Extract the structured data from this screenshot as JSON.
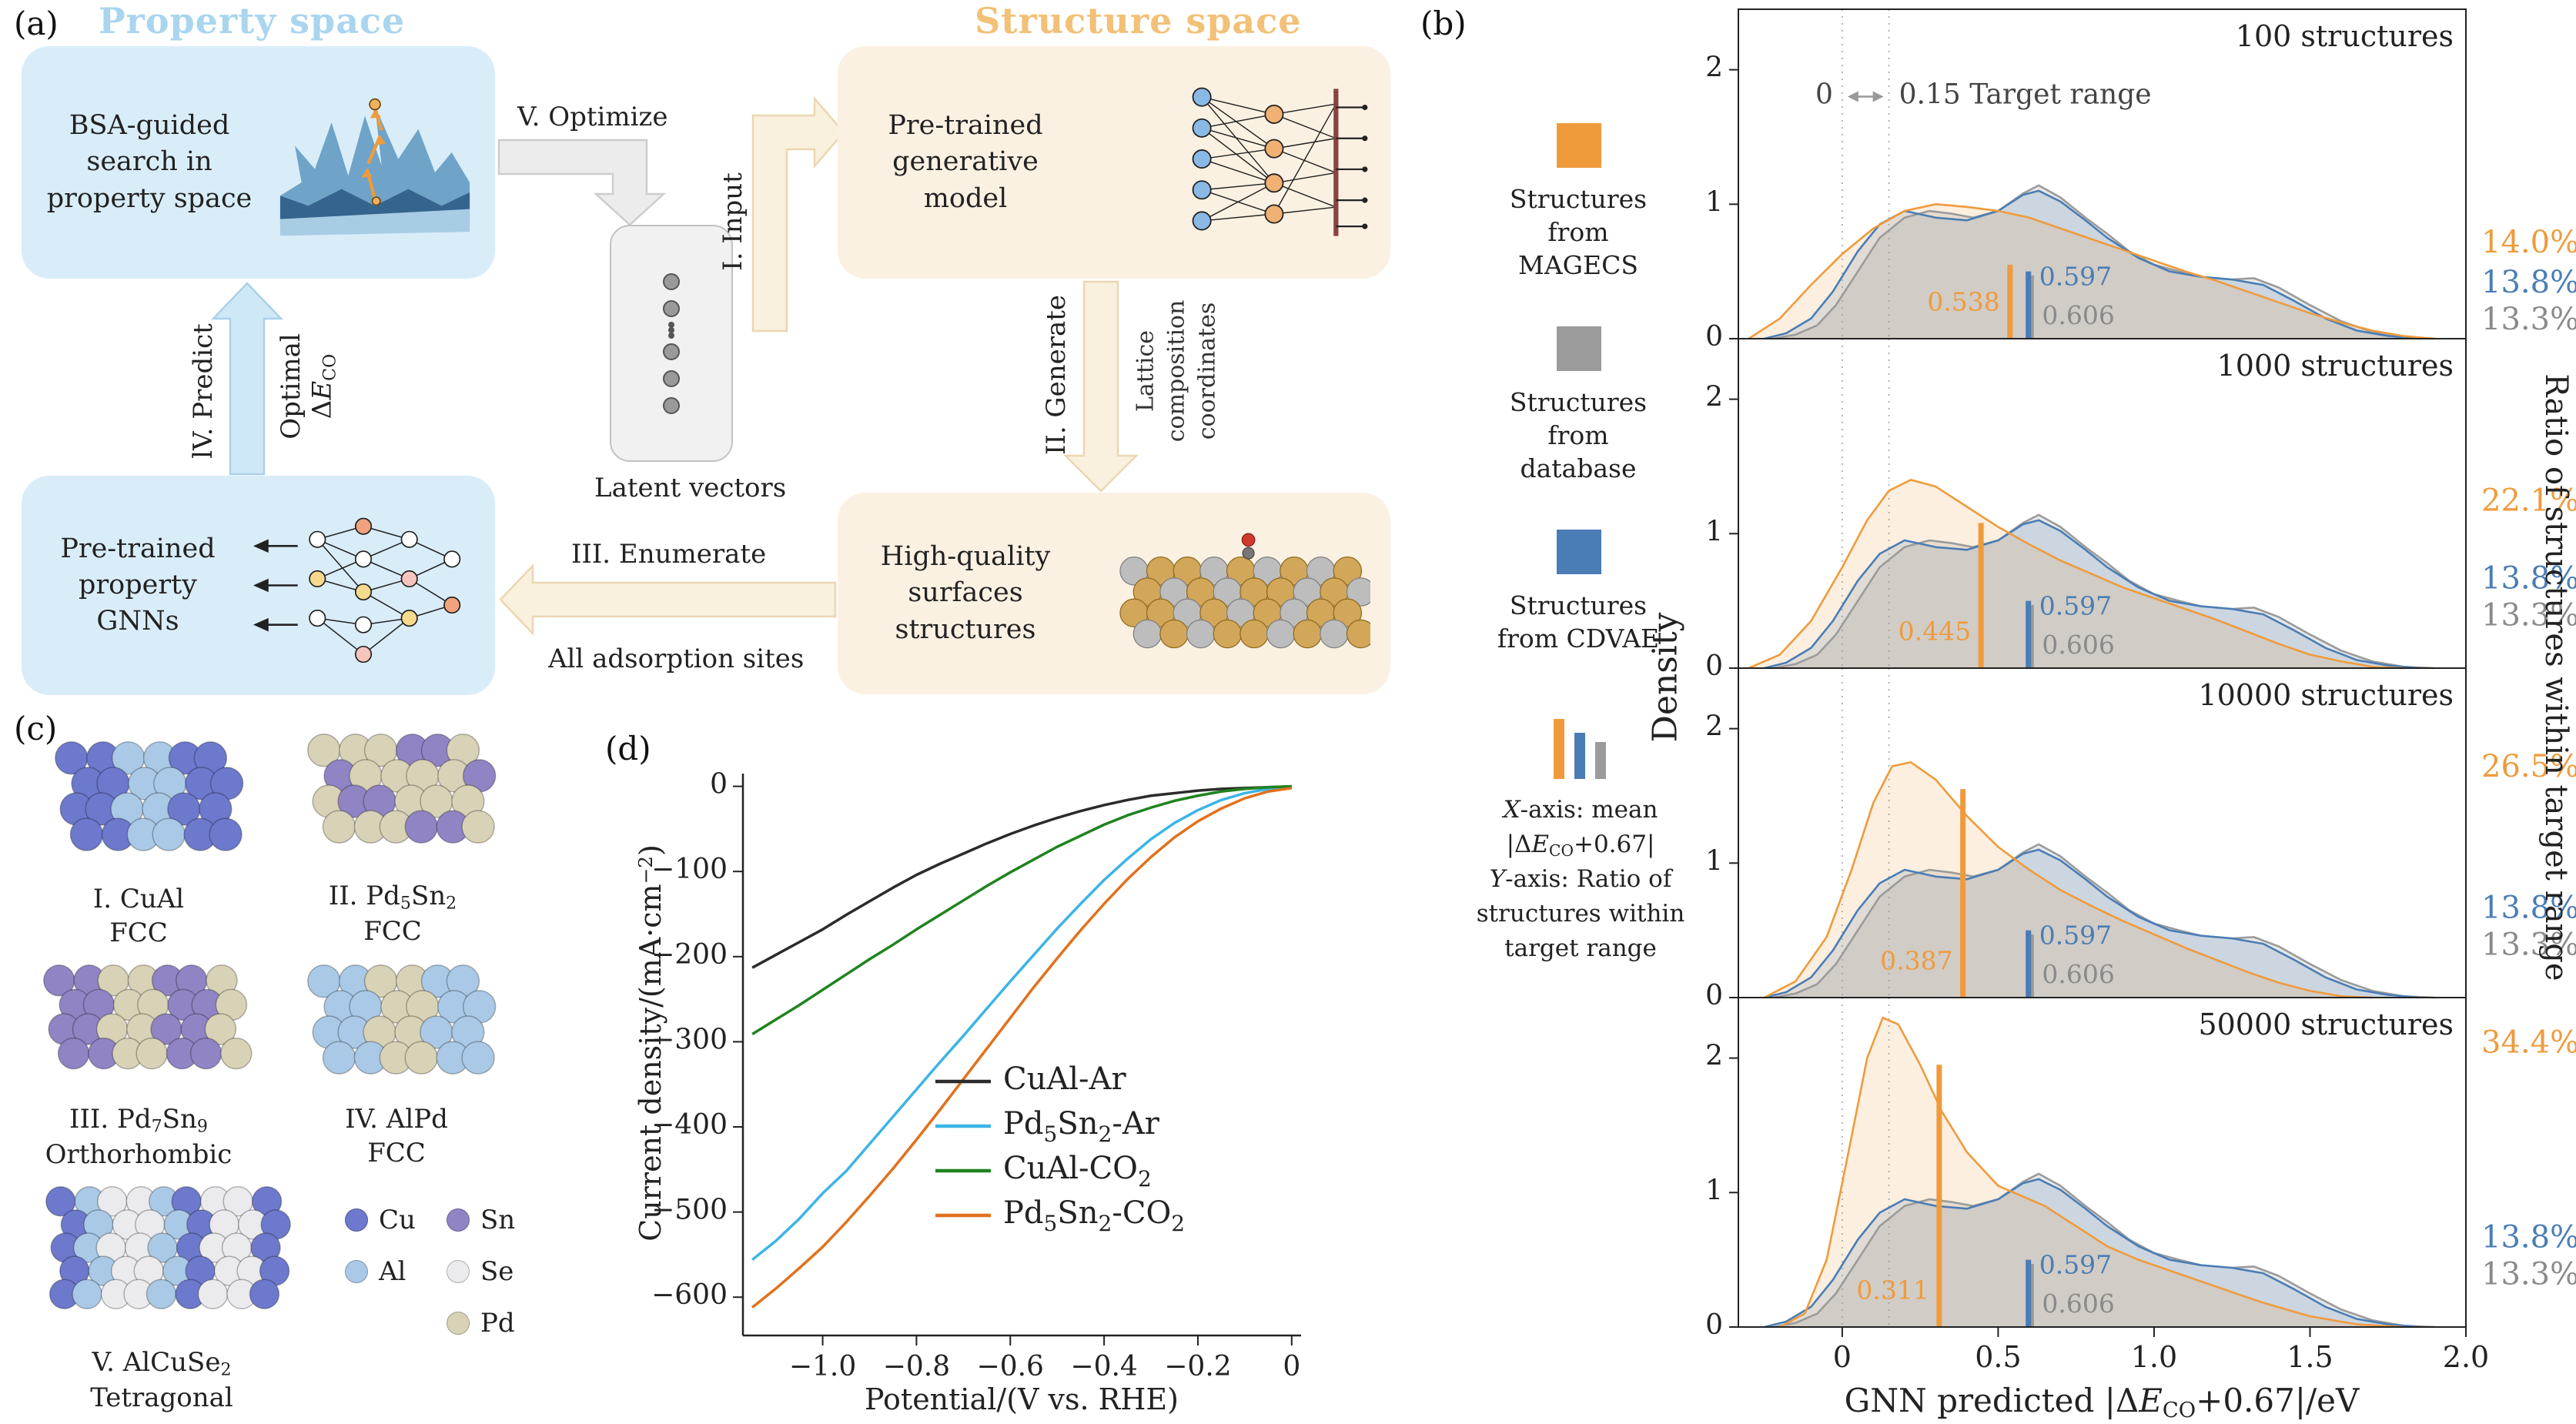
{
  "colors": {
    "magecs_orange": "#ef9b3c",
    "database_gray": "#9b9b9b",
    "cdvae_blue": "#4a7db5",
    "property_blue": "#a9d5ee",
    "property_box": "#d9edf9",
    "structure_orange": "#f2c076",
    "structure_box": "#fbf1e2",
    "arrow_gray": "#ececec",
    "arrow_blue": "#cfe8f7",
    "arrow_cream": "#faf0de"
  },
  "panel_a": {
    "label": "(a)",
    "property_space_title": "Property space",
    "structure_space_title": "Structure space",
    "bsa_box": "BSA-guided search in property space",
    "generative_box": "Pre-trained generative model",
    "latent_label": "Latent vectors",
    "gnn_box": "Pre-trained property GNNs",
    "surfaces_box": "High-quality surfaces structures",
    "arrow_optimize": "V. Optimize",
    "arrow_input": "I. Input",
    "arrow_generate": "II. Generate",
    "generate_side": [
      "Lattice",
      "composition",
      "coordinates"
    ],
    "arrow_predict": "lV. Predict",
    "predict_opt": "Optimal",
    "predict_val_parts": [
      {
        "t": "Δ"
      },
      {
        "t": "E",
        "i": 1
      },
      {
        "t": "CO",
        "s": 1
      }
    ],
    "arrow_enumerate": "III. Enumerate",
    "enumerate_sub": "All adsorption sites"
  },
  "panel_b": {
    "label": "(b)",
    "legend_magecs": "Structures from MAGECS",
    "legend_database": "Structures from database",
    "legend_cdvae": "Structures from CDVAE",
    "note_lines": [
      [
        {
          "t": "X",
          "i": 1
        },
        {
          "t": "-axis: mean"
        }
      ],
      [
        {
          "t": "|Δ"
        },
        {
          "t": "E",
          "i": 1
        },
        {
          "t": "CO",
          "s": 1
        },
        {
          "t": "+0.67|"
        }
      ],
      [
        {
          "t": "Y",
          "i": 1
        },
        {
          "t": "-axis: Ratio of"
        }
      ],
      [
        {
          "t": "structures within"
        }
      ],
      [
        {
          "t": "target range"
        }
      ]
    ]
  },
  "panel_c": {
    "label": "(c)",
    "structures": [
      {
        "name_parts": [
          {
            "t": "I. CuAl"
          }
        ],
        "lattice": "FCC",
        "colors": [
          "#6d79cc",
          "#a9c9e6"
        ]
      },
      {
        "name_parts": [
          {
            "t": "II. Pd"
          },
          {
            "t": "5",
            "s": 1
          },
          {
            "t": "Sn"
          },
          {
            "t": "2",
            "s": 1
          }
        ],
        "lattice": "FCC",
        "colors": [
          "#d8d2b6",
          "#9084c4",
          "#d8d2b6"
        ]
      },
      {
        "name_parts": [
          {
            "t": "III. Pd"
          },
          {
            "t": "7",
            "s": 1
          },
          {
            "t": "Sn"
          },
          {
            "t": "9",
            "s": 1
          }
        ],
        "lattice": "Orthorhombic",
        "colors": [
          "#9084c4",
          "#d8d2b6"
        ]
      },
      {
        "name_parts": [
          {
            "t": "IV. AlPd"
          }
        ],
        "lattice": "FCC",
        "colors": [
          "#a9c9e6",
          "#d8d2b6"
        ]
      },
      {
        "name_parts": [
          {
            "t": "V. AlCuSe"
          },
          {
            "t": "2",
            "s": 1
          }
        ],
        "lattice": "Tetragonal",
        "colors": [
          "#6d79cc",
          "#ebebee",
          "#a9c9e6",
          "#ebebee"
        ]
      }
    ],
    "legend": [
      {
        "label": "Cu",
        "color": "#6d79cc"
      },
      {
        "label": "Al",
        "color": "#a9c9e6"
      },
      {
        "label": "Sn",
        "color": "#9084c4"
      },
      {
        "label": "Se",
        "color": "#ebebee"
      },
      {
        "label": "Pd",
        "color": "#d8d2b6"
      }
    ]
  },
  "panel_d": {
    "label": "(d)"
  },
  "chart_data": [
    {
      "id": "gnn-predicted-density",
      "type": "area",
      "ylabel": "Density",
      "right_label": "Ratio of structures within target range",
      "xlabel_parts": [
        {
          "t": "GNN predicted |Δ"
        },
        {
          "t": "E",
          "i": 1
        },
        {
          "t": "CO",
          "s": 1
        },
        {
          "t": "+0.67|/eV"
        }
      ],
      "xlim": [
        -0.333,
        2.0
      ],
      "ylim": [
        0,
        2.45
      ],
      "xtick_vals": [
        0,
        0.5,
        1.0,
        1.5,
        2.0
      ],
      "xtick_labels": [
        "0",
        "0.5",
        "1.0",
        "1.5",
        "2.0"
      ],
      "yticks": [
        0,
        1,
        2
      ],
      "ytick_labels": [
        "0",
        "1",
        "2"
      ],
      "target_lines": [
        0,
        0.15
      ],
      "annotation": {
        "left": "0",
        "right": "0.15  Target range"
      },
      "legend_position": "left column outside",
      "grid": false,
      "fixed_curves": {
        "database": {
          "mean": 0.606,
          "mean_label": "0.606",
          "x": [
            -0.22,
            -0.15,
            -0.08,
            -0.02,
            0.05,
            0.12,
            0.2,
            0.28,
            0.35,
            0.42,
            0.5,
            0.58,
            0.63,
            0.7,
            0.78,
            0.85,
            0.92,
            1.0,
            1.08,
            1.15,
            1.25,
            1.32,
            1.4,
            1.5,
            1.6,
            1.7,
            1.8,
            1.9
          ],
          "y": [
            0,
            0.03,
            0.1,
            0.25,
            0.5,
            0.75,
            0.9,
            0.95,
            0.93,
            0.9,
            0.95,
            1.08,
            1.14,
            1.05,
            0.9,
            0.78,
            0.65,
            0.55,
            0.5,
            0.46,
            0.44,
            0.45,
            0.38,
            0.25,
            0.13,
            0.05,
            0.01,
            0
          ]
        },
        "cdvae": {
          "mean": 0.597,
          "mean_label": "0.597",
          "x": [
            -0.25,
            -0.18,
            -0.1,
            -0.03,
            0.05,
            0.12,
            0.2,
            0.3,
            0.4,
            0.5,
            0.58,
            0.63,
            0.7,
            0.78,
            0.85,
            0.95,
            1.05,
            1.15,
            1.25,
            1.35,
            1.45,
            1.55,
            1.65,
            1.75,
            1.85
          ],
          "y": [
            0,
            0.04,
            0.15,
            0.35,
            0.65,
            0.85,
            0.95,
            0.9,
            0.88,
            0.95,
            1.07,
            1.1,
            1.02,
            0.88,
            0.75,
            0.6,
            0.5,
            0.46,
            0.44,
            0.4,
            0.28,
            0.15,
            0.06,
            0.02,
            0
          ]
        }
      },
      "panels": [
        {
          "title": "100 structures",
          "magecs_mean": 0.538,
          "magecs_mean_label": "0.538",
          "magecs_bar_h": 0.55,
          "cdvae_bar_h": 0.5,
          "db_bar_h": 0.47,
          "pct": {
            "magecs": "14.0%",
            "cdvae": "13.8%",
            "database": "13.3%"
          },
          "magecs_x": [
            -0.3,
            -0.2,
            -0.1,
            0,
            0.1,
            0.2,
            0.3,
            0.4,
            0.5,
            0.6,
            0.7,
            0.8,
            0.9,
            1.0,
            1.1,
            1.2,
            1.3,
            1.4,
            1.5,
            1.6,
            1.7,
            1.8,
            1.9
          ],
          "magecs_y": [
            0,
            0.15,
            0.4,
            0.63,
            0.82,
            0.95,
            1.0,
            0.98,
            0.95,
            0.9,
            0.82,
            0.74,
            0.66,
            0.58,
            0.5,
            0.43,
            0.35,
            0.27,
            0.19,
            0.12,
            0.06,
            0.02,
            0
          ]
        },
        {
          "title": "1000 structures",
          "magecs_mean": 0.445,
          "magecs_mean_label": "0.445",
          "magecs_bar_h": 1.08,
          "cdvae_bar_h": 0.5,
          "db_bar_h": 0.47,
          "pct": {
            "magecs": "22.1%",
            "cdvae": "13.8%",
            "database": "13.3%"
          },
          "magecs_x": [
            -0.3,
            -0.2,
            -0.1,
            0,
            0.08,
            0.15,
            0.22,
            0.3,
            0.4,
            0.5,
            0.6,
            0.7,
            0.8,
            0.9,
            1.0,
            1.1,
            1.2,
            1.3,
            1.4,
            1.5,
            1.6,
            1.7,
            1.8
          ],
          "magecs_y": [
            0,
            0.1,
            0.35,
            0.75,
            1.1,
            1.32,
            1.4,
            1.35,
            1.2,
            1.05,
            0.92,
            0.8,
            0.7,
            0.6,
            0.52,
            0.44,
            0.36,
            0.27,
            0.18,
            0.1,
            0.05,
            0.01,
            0
          ]
        },
        {
          "title": "10000 structures",
          "magecs_mean": 0.387,
          "magecs_mean_label": "0.387",
          "magecs_bar_h": 1.55,
          "cdvae_bar_h": 0.5,
          "db_bar_h": 0.47,
          "pct": {
            "magecs": "26.5%",
            "cdvae": "13.8%",
            "database": "13.3%"
          },
          "magecs_x": [
            -0.25,
            -0.15,
            -0.05,
            0.03,
            0.1,
            0.16,
            0.22,
            0.3,
            0.4,
            0.5,
            0.6,
            0.7,
            0.8,
            0.9,
            1.0,
            1.1,
            1.2,
            1.3,
            1.4,
            1.5,
            1.6,
            1.7
          ],
          "magecs_y": [
            0,
            0.12,
            0.45,
            0.95,
            1.45,
            1.72,
            1.75,
            1.62,
            1.35,
            1.12,
            0.95,
            0.8,
            0.68,
            0.57,
            0.47,
            0.37,
            0.28,
            0.19,
            0.11,
            0.05,
            0.01,
            0
          ]
        },
        {
          "title": "50000 structures",
          "magecs_mean": 0.311,
          "magecs_mean_label": "0.311",
          "magecs_bar_h": 1.95,
          "cdvae_bar_h": 0.5,
          "db_bar_h": 0.47,
          "pct": {
            "magecs": "34.4%",
            "cdvae": "13.8%",
            "database": "13.3%"
          },
          "magecs_x": [
            -0.2,
            -0.12,
            -0.05,
            0.02,
            0.08,
            0.13,
            0.18,
            0.25,
            0.32,
            0.4,
            0.5,
            0.6,
            0.65,
            0.75,
            0.85,
            0.95,
            1.05,
            1.2,
            1.35,
            1.5,
            1.65,
            1.8
          ],
          "magecs_y": [
            0,
            0.1,
            0.5,
            1.3,
            2.0,
            2.3,
            2.25,
            1.95,
            1.6,
            1.3,
            1.05,
            0.95,
            0.9,
            0.75,
            0.6,
            0.5,
            0.42,
            0.3,
            0.18,
            0.08,
            0.02,
            0
          ]
        }
      ]
    },
    {
      "id": "lsv-curves",
      "type": "line",
      "xlabel": "Potential/(V vs. RHE)",
      "ylabel_parts": [
        {
          "t": "Current density/(mA·cm"
        },
        {
          "t": "−2",
          "p": 1
        },
        {
          "t": ")"
        }
      ],
      "xlim": [
        -1.17,
        0.02
      ],
      "ylim": [
        -645,
        15
      ],
      "xtick_vals": [
        -1.0,
        -0.8,
        -0.6,
        -0.4,
        -0.2,
        0
      ],
      "xtick_labels": [
        "−1.0",
        "−0.8",
        "−0.6",
        "−0.4",
        "−0.2",
        "0"
      ],
      "ytick_vals": [
        0,
        -100,
        -200,
        -300,
        -400,
        -500,
        -600
      ],
      "ytick_labels": [
        "0",
        "−100",
        "−200",
        "−300",
        "−400",
        "−500",
        "−600"
      ],
      "legend_position": "center right, no frame",
      "series": [
        {
          "key": "cual-ar",
          "color": "#2b2b2b",
          "label_parts": [
            {
              "t": "CuAl-Ar"
            }
          ],
          "x": [
            -1.15,
            -1.1,
            -1.05,
            -1.0,
            -0.95,
            -0.9,
            -0.85,
            -0.8,
            -0.75,
            -0.7,
            -0.65,
            -0.6,
            -0.55,
            -0.5,
            -0.45,
            -0.4,
            -0.35,
            -0.3,
            -0.25,
            -0.2,
            -0.15,
            -0.1,
            -0.05,
            0
          ],
          "y": [
            -213,
            -198,
            -183,
            -168,
            -151,
            -135,
            -119,
            -104,
            -91,
            -79,
            -67,
            -56,
            -46,
            -37,
            -29,
            -22,
            -16,
            -11,
            -8,
            -5,
            -3,
            -2,
            -1,
            0
          ]
        },
        {
          "key": "pd5sn2-ar",
          "color": "#3cb4e6",
          "label_parts": [
            {
              "t": "Pd"
            },
            {
              "t": "5",
              "s": 1
            },
            {
              "t": "Sn"
            },
            {
              "t": "2",
              "s": 1
            },
            {
              "t": "-Ar"
            }
          ],
          "x": [
            -1.15,
            -1.1,
            -1.05,
            -1.0,
            -0.95,
            -0.9,
            -0.85,
            -0.8,
            -0.75,
            -0.7,
            -0.65,
            -0.6,
            -0.55,
            -0.5,
            -0.45,
            -0.4,
            -0.35,
            -0.3,
            -0.25,
            -0.2,
            -0.15,
            -0.1,
            -0.05,
            0
          ],
          "y": [
            -556,
            -534,
            -508,
            -478,
            -452,
            -420,
            -388,
            -356,
            -324,
            -293,
            -261,
            -229,
            -198,
            -167,
            -138,
            -110,
            -85,
            -62,
            -43,
            -28,
            -16,
            -8,
            -3,
            -1
          ]
        },
        {
          "key": "cual-co2",
          "color": "#20831f",
          "label_parts": [
            {
              "t": "CuAl-CO"
            },
            {
              "t": "2",
              "s": 1
            }
          ],
          "x": [
            -1.15,
            -1.1,
            -1.05,
            -1.0,
            -0.95,
            -0.9,
            -0.85,
            -0.8,
            -0.75,
            -0.7,
            -0.65,
            -0.6,
            -0.55,
            -0.5,
            -0.45,
            -0.4,
            -0.35,
            -0.3,
            -0.25,
            -0.2,
            -0.15,
            -0.1,
            -0.05,
            0
          ],
          "y": [
            -291,
            -274,
            -257,
            -239,
            -221,
            -203,
            -186,
            -168,
            -151,
            -134,
            -117,
            -101,
            -86,
            -71,
            -58,
            -45,
            -34,
            -25,
            -17,
            -11,
            -6,
            -3,
            -1,
            0
          ]
        },
        {
          "key": "pd5sn2-co2",
          "color": "#e2711d",
          "label_parts": [
            {
              "t": "Pd"
            },
            {
              "t": "5",
              "s": 1
            },
            {
              "t": "Sn"
            },
            {
              "t": "2",
              "s": 1
            },
            {
              "t": "-CO"
            },
            {
              "t": "2",
              "s": 1
            }
          ],
          "x": [
            -1.15,
            -1.1,
            -1.05,
            -1.0,
            -0.95,
            -0.9,
            -0.85,
            -0.8,
            -0.75,
            -0.7,
            -0.65,
            -0.6,
            -0.55,
            -0.5,
            -0.45,
            -0.4,
            -0.35,
            -0.3,
            -0.25,
            -0.2,
            -0.15,
            -0.1,
            -0.05,
            0
          ],
          "y": [
            -612,
            -590,
            -566,
            -541,
            -512,
            -481,
            -449,
            -415,
            -380,
            -344,
            -308,
            -272,
            -236,
            -202,
            -169,
            -138,
            -109,
            -83,
            -60,
            -41,
            -26,
            -14,
            -6,
            -2
          ]
        }
      ]
    }
  ]
}
